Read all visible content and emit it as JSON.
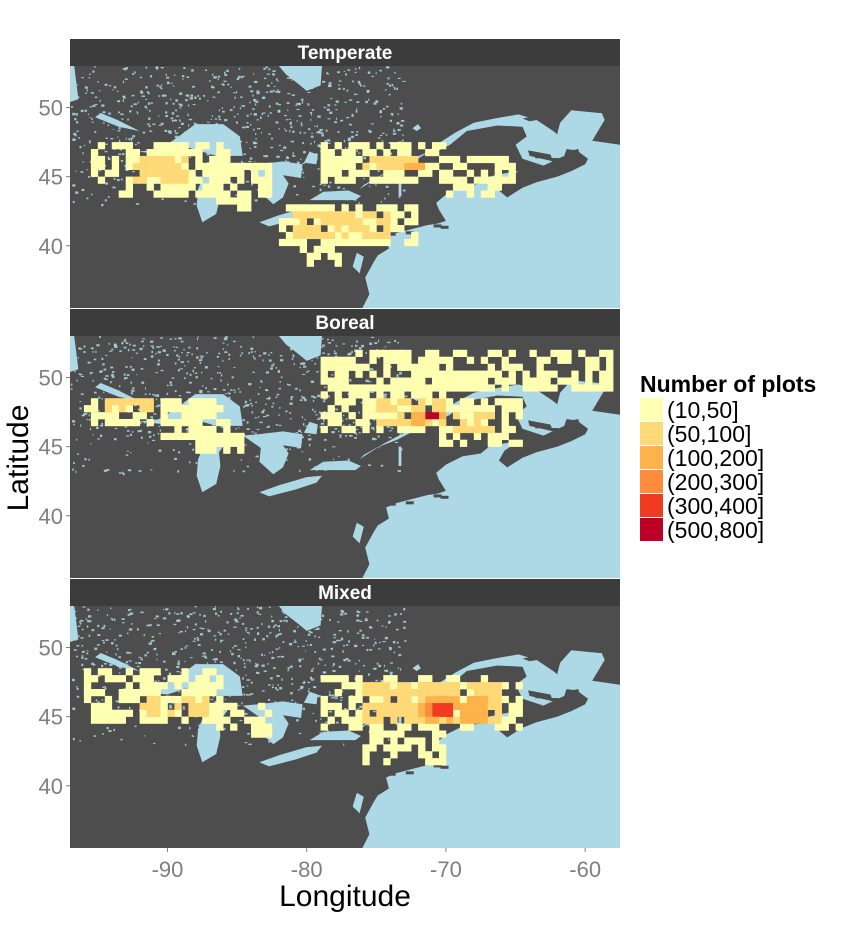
{
  "colors": {
    "land": "#4d4d4d",
    "water": "#add8e6",
    "strip": "#3c3c3c",
    "strip_text": "#ffffff",
    "tick_text": "#7f7f7f"
  },
  "chart_data": {
    "type": "heatmap",
    "xlabel": "Longitude",
    "ylabel": "Latitude",
    "xlim": [
      -97,
      -57.5
    ],
    "ylim": [
      35.5,
      53
    ],
    "xticks": [
      -90,
      -80,
      -70,
      -60
    ],
    "yticks": [
      40,
      45,
      50
    ],
    "grid": false,
    "legend": {
      "title": "Number of plots",
      "position": "right",
      "items": [
        {
          "label": "(10,50]",
          "color": "#ffffb2"
        },
        {
          "label": "(50,100]",
          "color": "#fed976"
        },
        {
          "label": "(100,200]",
          "color": "#feb24c"
        },
        {
          "label": "(200,300]",
          "color": "#fd8d3c"
        },
        {
          "label": "(300,400]",
          "color": "#f03b20"
        },
        {
          "label": "(500,800]",
          "color": "#bd0026"
        }
      ]
    },
    "panels": [
      {
        "title": "Temperate",
        "clusters": [
          {
            "lon": [
              -95.5,
              -85.5
            ],
            "lat": [
              43.5,
              47.5
            ],
            "bin": 0
          },
          {
            "lon": [
              -92.5,
              -88.5
            ],
            "lat": [
              44.5,
              46.5
            ],
            "bin": 1
          },
          {
            "lon": [
              -86.5,
              -82.5
            ],
            "lat": [
              42.5,
              46
            ],
            "bin": 0
          },
          {
            "lon": [
              -82,
              -72
            ],
            "lat": [
              40,
              43
            ],
            "bin": 0
          },
          {
            "lon": [
              -81,
              -74
            ],
            "lat": [
              40.5,
              42.5
            ],
            "bin": 1
          },
          {
            "lon": [
              -79,
              -70
            ],
            "lat": [
              44.5,
              47.5
            ],
            "bin": 0
          },
          {
            "lon": [
              -76,
              -72
            ],
            "lat": [
              45.5,
              46.5
            ],
            "bin": 1
          },
          {
            "lon": [
              -73.5,
              -71
            ],
            "lat": [
              45.5,
              46
            ],
            "bin": 2
          },
          {
            "lon": [
              -70,
              -65
            ],
            "lat": [
              43.5,
              46.5
            ],
            "bin": 0
          },
          {
            "lon": [
              -80.5,
              -77.5
            ],
            "lat": [
              38.5,
              40.5
            ],
            "bin": 0
          }
        ]
      },
      {
        "title": "Boreal",
        "clusters": [
          {
            "lon": [
              -96,
              -86
            ],
            "lat": [
              46.5,
              48.5
            ],
            "bin": 0
          },
          {
            "lon": [
              -94.5,
              -91
            ],
            "lat": [
              47.5,
              48.5
            ],
            "bin": 1
          },
          {
            "lon": [
              -90.5,
              -85.5
            ],
            "lat": [
              45.5,
              47
            ],
            "bin": 0
          },
          {
            "lon": [
              -88,
              -84.5
            ],
            "lat": [
              44.5,
              46
            ],
            "bin": 0
          },
          {
            "lon": [
              -79,
              -58
            ],
            "lat": [
              49,
              52
            ],
            "bin": 0
          },
          {
            "lon": [
              -79,
              -70
            ],
            "lat": [
              46,
              49.5
            ],
            "bin": 0
          },
          {
            "lon": [
              -75,
              -70
            ],
            "lat": [
              46.5,
              48.5
            ],
            "bin": 1
          },
          {
            "lon": [
              -72.5,
              -70
            ],
            "lat": [
              46.5,
              47.5
            ],
            "bin": 2
          },
          {
            "lon": [
              -71.3,
              -70.7
            ],
            "lat": [
              47,
              47.4
            ],
            "bin": 5
          },
          {
            "lon": [
              -70.5,
              -64.5
            ],
            "lat": [
              45,
              48.5
            ],
            "bin": 0
          },
          {
            "lon": [
              -69.5,
              -66.5
            ],
            "lat": [
              46,
              47.5
            ],
            "bin": 1
          }
        ]
      },
      {
        "title": "Mixed",
        "clusters": [
          {
            "lon": [
              -96,
              -86
            ],
            "lat": [
              44.5,
              48.5
            ],
            "bin": 0
          },
          {
            "lon": [
              -92,
              -87
            ],
            "lat": [
              45,
              46.5
            ],
            "bin": 1
          },
          {
            "lon": [
              -86.5,
              -82.5
            ],
            "lat": [
              43.5,
              46
            ],
            "bin": 0
          },
          {
            "lon": [
              -79,
              -64.5
            ],
            "lat": [
              44,
              48
            ],
            "bin": 0
          },
          {
            "lon": [
              -76,
              -66
            ],
            "lat": [
              44.5,
              47.5
            ],
            "bin": 1
          },
          {
            "lon": [
              -72,
              -67
            ],
            "lat": [
              44.8,
              46.5
            ],
            "bin": 2
          },
          {
            "lon": [
              -71.5,
              -69.5
            ],
            "lat": [
              45.3,
              46
            ],
            "bin": 3
          },
          {
            "lon": [
              -70.7,
              -69.7
            ],
            "lat": [
              45.4,
              45.8
            ],
            "bin": 4
          },
          {
            "lon": [
              -76,
              -70
            ],
            "lat": [
              41.5,
              44
            ],
            "bin": 0
          }
        ]
      }
    ]
  }
}
